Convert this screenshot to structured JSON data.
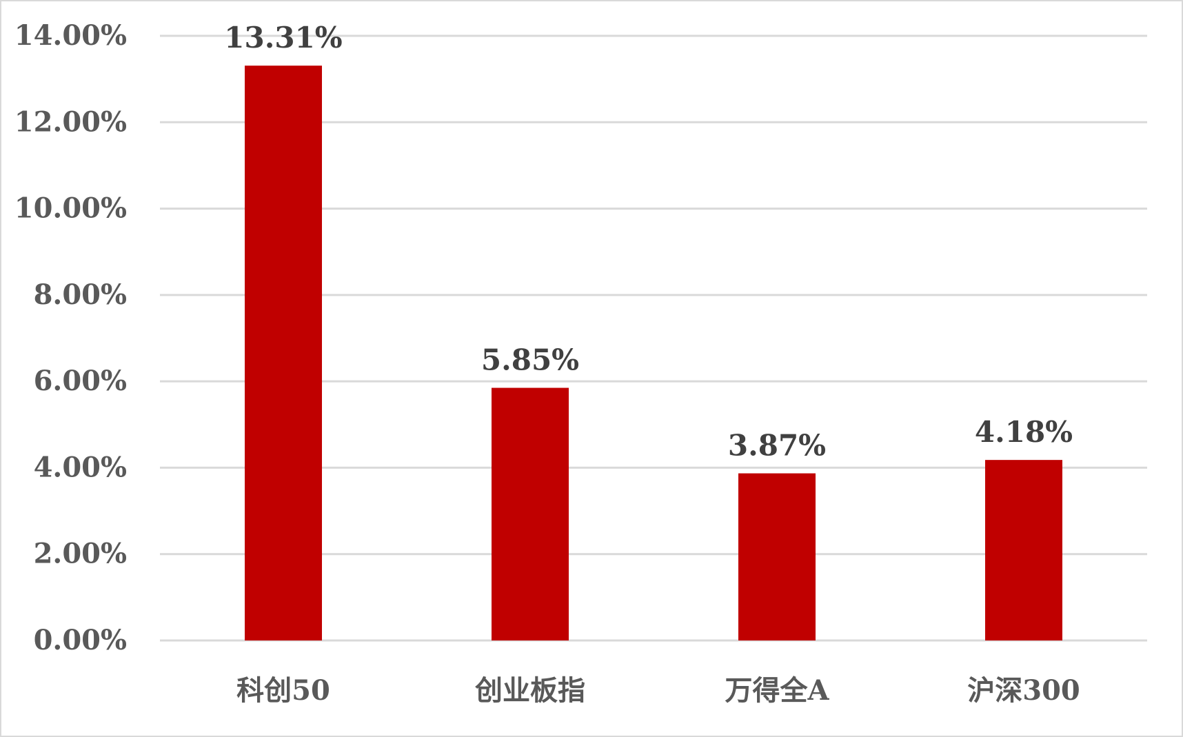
{
  "chart_data": {
    "type": "bar",
    "categories": [
      "科创50",
      "创业板指",
      "万得全A",
      "沪深300"
    ],
    "values": [
      13.31,
      5.85,
      3.87,
      4.18
    ],
    "data_labels": [
      "13.31%",
      "5.85%",
      "3.87%",
      "4.18%"
    ],
    "y_ticks": [
      "0.00%",
      "2.00%",
      "4.00%",
      "6.00%",
      "8.00%",
      "10.00%",
      "12.00%",
      "14.00%"
    ],
    "ylim": [
      0,
      14
    ],
    "grid": true,
    "legend": "none",
    "bar_color": "#C00000",
    "grid_color": "#D9D9D9"
  }
}
